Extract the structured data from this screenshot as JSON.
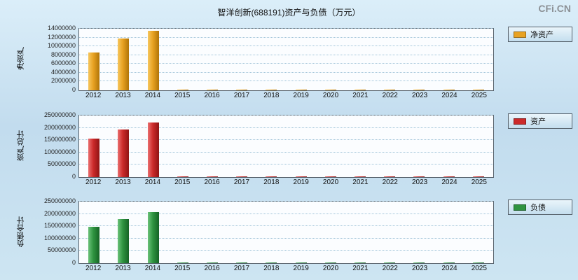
{
  "page": {
    "title": "智洋创新(688191)资产与负债（万元）",
    "watermark": "CFi.CN"
  },
  "chart_data": [
    {
      "type": "bar",
      "ylabel": "净资产",
      "legend": "净资产",
      "color_light": "#f6c75f",
      "color_base": "#e8a222",
      "color_dark": "#b07408",
      "categories": [
        "2012",
        "2013",
        "2014",
        "2015",
        "2016",
        "2017",
        "2018",
        "2019",
        "2020",
        "2021",
        "2022",
        "2023",
        "2024",
        "2025"
      ],
      "values": [
        8600000,
        11800000,
        13600000,
        0,
        0,
        0,
        0,
        0,
        0,
        0,
        0,
        0,
        0,
        0
      ],
      "ylim": [
        0,
        14000000
      ],
      "yticks": [
        "0",
        "2000000",
        "4000000",
        "6000000",
        "8000000",
        "10000000",
        "12000000",
        "14000000"
      ],
      "grid": true,
      "legend_position": "right"
    },
    {
      "type": "bar",
      "ylabel": "资产总计",
      "legend": "资产",
      "color_light": "#ea7070",
      "color_base": "#cc2a2a",
      "color_dark": "#8f1414",
      "categories": [
        "2012",
        "2013",
        "2014",
        "2015",
        "2016",
        "2017",
        "2018",
        "2019",
        "2020",
        "2021",
        "2022",
        "2023",
        "2024",
        "2025"
      ],
      "values": [
        157000000,
        192000000,
        223000000,
        0,
        0,
        0,
        0,
        0,
        0,
        0,
        0,
        0,
        0,
        0
      ],
      "ylim": [
        0,
        250000000
      ],
      "yticks": [
        "0",
        "50000000",
        "100000000",
        "150000000",
        "200000000",
        "250000000"
      ],
      "grid": true,
      "legend_position": "right"
    },
    {
      "type": "bar",
      "ylabel": "负债合计",
      "legend": "负债",
      "color_light": "#6cc27a",
      "color_base": "#2f9440",
      "color_dark": "#156325",
      "categories": [
        "2012",
        "2013",
        "2014",
        "2015",
        "2016",
        "2017",
        "2018",
        "2019",
        "2020",
        "2021",
        "2022",
        "2023",
        "2024",
        "2025"
      ],
      "values": [
        148000000,
        178000000,
        207000000,
        0,
        0,
        0,
        0,
        0,
        0,
        0,
        0,
        0,
        0,
        0
      ],
      "ylim": [
        0,
        250000000
      ],
      "yticks": [
        "0",
        "50000000",
        "100000000",
        "150000000",
        "200000000",
        "250000000"
      ],
      "grid": true,
      "legend_position": "right"
    }
  ]
}
